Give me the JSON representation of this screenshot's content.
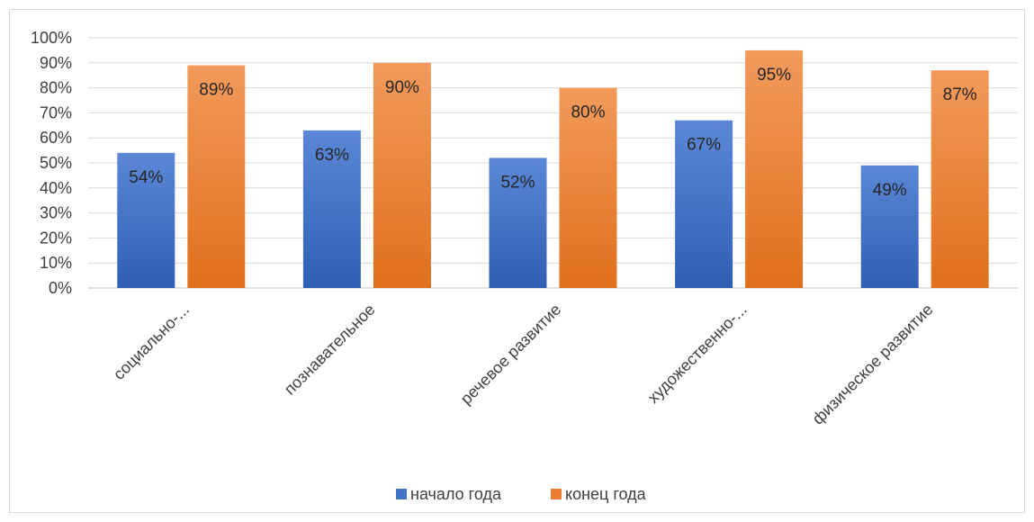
{
  "chart_data": {
    "type": "bar",
    "categories": [
      "социально-...",
      "познавательное",
      "речевое развитие",
      "художественно-...",
      "физическое развитие"
    ],
    "series": [
      {
        "name": "начало года",
        "values": [
          54,
          63,
          52,
          67,
          49
        ],
        "labels": [
          "54%",
          "63%",
          "52%",
          "67%",
          "49%"
        ],
        "color": "#4472c4"
      },
      {
        "name": "конец года",
        "values": [
          89,
          90,
          80,
          95,
          87
        ],
        "labels": [
          "89%",
          "90%",
          "80%",
          "95%",
          "87%"
        ],
        "color": "#ed7d31"
      }
    ],
    "ylim": [
      0,
      100
    ],
    "y_ticks": [
      "0%",
      "10%",
      "20%",
      "30%",
      "40%",
      "50%",
      "60%",
      "70%",
      "80%",
      "90%",
      "100%"
    ],
    "grid": true,
    "legend_position": "bottom"
  }
}
